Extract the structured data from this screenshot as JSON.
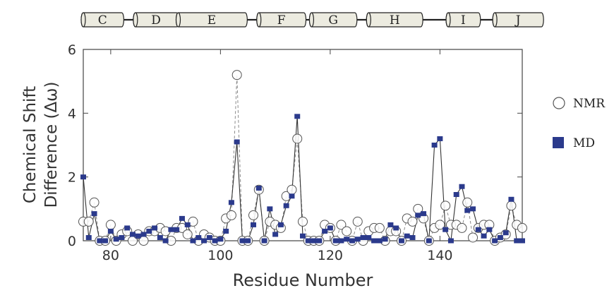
{
  "chart_data": {
    "type": "line",
    "xlabel": "Residue Number",
    "ylabel_lines": [
      "Chemical Shift",
      "Difference (Δω)"
    ],
    "xlim": [
      75,
      155
    ],
    "ylim": [
      0,
      6
    ],
    "xticks": [
      "80",
      "100",
      "120",
      "140"
    ],
    "yticks": [
      "0",
      "2",
      "4",
      "6"
    ],
    "legend_placement": "right",
    "helices": [
      {
        "label": "C",
        "start": 75,
        "end": 82
      },
      {
        "label": "D",
        "start": 84.5,
        "end": 92
      },
      {
        "label": "E",
        "start": 92.3,
        "end": 104.5
      },
      {
        "label": "F",
        "start": 107,
        "end": 115.2
      },
      {
        "label": "G",
        "start": 116.6,
        "end": 124.5
      },
      {
        "label": "H",
        "start": 127,
        "end": 136.5
      },
      {
        "label": "I",
        "start": 141.5,
        "end": 147
      },
      {
        "label": "J",
        "start": 150,
        "end": 158.5
      }
    ],
    "series": [
      {
        "name": "NMR",
        "marker": "open-circle",
        "line": "dashed",
        "color": "#555555",
        "x": [
          75,
          76,
          77,
          78,
          79,
          80,
          81,
          82,
          83,
          84,
          85,
          86,
          87,
          88,
          89,
          90,
          91,
          92,
          93,
          94,
          95,
          96,
          97,
          98,
          99,
          100,
          101,
          102,
          103,
          104,
          105,
          106,
          107,
          108,
          109,
          110,
          111,
          112,
          113,
          114,
          115,
          116,
          117,
          118,
          119,
          120,
          121,
          122,
          123,
          124,
          125,
          126,
          127,
          128,
          129,
          130,
          131,
          132,
          133,
          134,
          135,
          136,
          137,
          138,
          139,
          140,
          141,
          142,
          143,
          144,
          145,
          146,
          147,
          148,
          149,
          150,
          151,
          152,
          153,
          154,
          155
        ],
        "y": [
          0.6,
          0.6,
          1.2,
          0.0,
          0.0,
          0.5,
          0.0,
          0.2,
          0.3,
          0.0,
          0.2,
          0.0,
          0.3,
          0.3,
          0.4,
          0.3,
          0.0,
          0.4,
          0.4,
          0.2,
          0.6,
          0.0,
          0.2,
          0.1,
          0.0,
          0.0,
          0.7,
          0.8,
          5.2,
          0.0,
          0.0,
          0.8,
          1.6,
          0.0,
          0.6,
          0.5,
          0.4,
          1.4,
          1.6,
          3.2,
          0.6,
          0.0,
          0.0,
          0.0,
          0.5,
          0.4,
          0.0,
          0.5,
          0.3,
          0.0,
          0.6,
          0.0,
          0.3,
          0.4,
          0.4,
          0.0,
          0.3,
          0.3,
          0.0,
          0.7,
          0.6,
          1.0,
          0.7,
          0.0,
          0.4,
          0.5,
          1.1,
          0.5,
          0.5,
          0.4,
          1.2,
          0.1,
          0.4,
          0.5,
          0.5,
          0.0,
          0.1,
          0.2,
          1.1,
          0.5,
          0.4
        ]
      },
      {
        "name": "MD",
        "marker": "filled-square",
        "line": "solid",
        "color": "#2b3a8c",
        "x": [
          75,
          76,
          77,
          78,
          79,
          80,
          81,
          82,
          83,
          84,
          85,
          86,
          87,
          88,
          89,
          90,
          91,
          92,
          93,
          94,
          95,
          96,
          97,
          98,
          99,
          100,
          101,
          102,
          103,
          104,
          105,
          106,
          107,
          108,
          109,
          110,
          111,
          112,
          113,
          114,
          115,
          116,
          117,
          118,
          119,
          120,
          121,
          122,
          123,
          124,
          125,
          126,
          127,
          128,
          129,
          130,
          131,
          132,
          133,
          134,
          135,
          136,
          137,
          138,
          139,
          140,
          141,
          142,
          143,
          144,
          145,
          146,
          147,
          148,
          149,
          150,
          151,
          152,
          153,
          154,
          155
        ],
        "y": [
          2.0,
          0.1,
          0.85,
          0.0,
          0.0,
          0.3,
          0.05,
          0.1,
          0.4,
          0.2,
          0.15,
          0.2,
          0.3,
          0.4,
          0.1,
          0.0,
          0.35,
          0.35,
          0.7,
          0.5,
          0.0,
          0.1,
          0.0,
          0.1,
          0.0,
          0.05,
          0.3,
          1.2,
          3.1,
          0.0,
          0.0,
          0.5,
          1.65,
          0.0,
          1.0,
          0.2,
          0.5,
          1.1,
          1.4,
          3.9,
          0.15,
          0.0,
          0.0,
          0.0,
          0.3,
          0.4,
          0.0,
          0.0,
          0.05,
          0.0,
          0.05,
          0.1,
          0.1,
          0.0,
          0.0,
          0.05,
          0.5,
          0.4,
          0.0,
          0.15,
          0.1,
          0.8,
          0.85,
          0.0,
          3.0,
          3.2,
          0.35,
          0.0,
          1.45,
          1.7,
          0.95,
          1.0,
          0.35,
          0.15,
          0.35,
          0.0,
          0.1,
          0.25,
          1.3,
          0.0,
          0.0
        ]
      }
    ]
  }
}
